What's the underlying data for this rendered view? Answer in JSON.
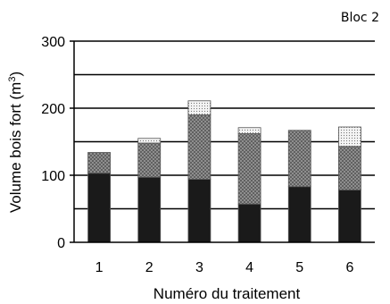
{
  "chart_data": {
    "type": "bar",
    "stacked": true,
    "title": "Bloc 2",
    "xlabel": "Numéro du traitement",
    "ylabel": "Volume bois fort (m 3)",
    "ylabel_parts": {
      "main": "Volume bois fort (m",
      "superscript": "3",
      "close": ")"
    },
    "ylim": [
      0,
      300
    ],
    "yticks": [
      0,
      100,
      200,
      300
    ],
    "gridlines": [
      50,
      100,
      150,
      200,
      250,
      300
    ],
    "grid": true,
    "categories": [
      "1",
      "2",
      "3",
      "4",
      "5",
      "6"
    ],
    "series": [
      {
        "values": [
          103,
          97,
          94,
          57,
          83,
          78
        ]
      },
      {
        "values": [
          31,
          51,
          96,
          105,
          84,
          65
        ]
      },
      {
        "values": [
          0,
          7,
          21,
          9,
          0,
          29
        ]
      }
    ],
    "colors": [
      "#1a1a1a",
      "#8a8a8a",
      "#eeeeee"
    ],
    "patterns": [
      "solid",
      "crosshatch",
      "dotted"
    ]
  }
}
